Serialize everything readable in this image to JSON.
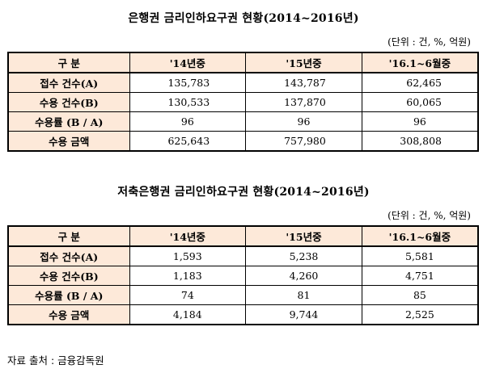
{
  "table1": {
    "title": "은행권 금리인하요구권 현황(2014~2016년)",
    "unit": "(단위 : 건, %, 억원)",
    "headers": [
      "구 분",
      "'14년중",
      "'15년중",
      "'16.1~6월중"
    ],
    "rows": [
      {
        "label": "접수 건수(A)",
        "values": [
          "135,783",
          "143,787",
          "62,465"
        ]
      },
      {
        "label": "수용 건수(B)",
        "values": [
          "130,533",
          "137,870",
          "60,065"
        ]
      },
      {
        "label": "수용률 (B / A)",
        "values": [
          "96",
          "96",
          "96"
        ]
      },
      {
        "label": "수용 금액",
        "values": [
          "625,643",
          "757,980",
          "308,808"
        ]
      }
    ]
  },
  "table2": {
    "title": "저축은행권 금리인하요구권 현황(2014~2016년)",
    "unit": "(단위 : 건, %, 억원)",
    "headers": [
      "구 분",
      "'14년중",
      "'15년중",
      "'16.1~6월중"
    ],
    "rows": [
      {
        "label": "접수 건수(A)",
        "values": [
          "1,593",
          "5,238",
          "5,581"
        ]
      },
      {
        "label": "수용 건수(B)",
        "values": [
          "1,183",
          "4,260",
          "4,751"
        ]
      },
      {
        "label": "수용률 (B / A)",
        "values": [
          "74",
          "81",
          "85"
        ]
      },
      {
        "label": "수용 금액",
        "values": [
          "4,184",
          "9,744",
          "2,525"
        ]
      }
    ]
  },
  "source": "자료 출처 : 금융감독원"
}
